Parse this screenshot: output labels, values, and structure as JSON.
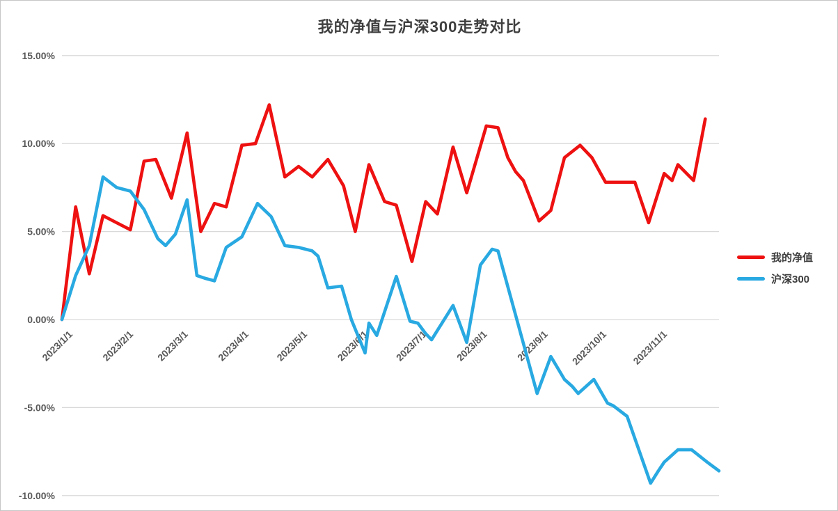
{
  "title": "我的净值与沪深300走势对比",
  "legend": {
    "position": "right",
    "items": [
      {
        "label": "我的净值",
        "color": "#ee1111"
      },
      {
        "label": "沪深300",
        "color": "#29a9e1"
      }
    ]
  },
  "colors": {
    "background": "#ffffff",
    "frame_border": "#c6c6c6",
    "gridline": "#d9d9d9",
    "axis_text": "#595959",
    "title_text": "#3f3f3f",
    "series_red": "#ee1111",
    "series_blue": "#29a9e1"
  },
  "chart_data": {
    "type": "line",
    "title": "我的净值与沪深300走势对比",
    "xlabel": "",
    "ylabel": "",
    "grid": "horizontal",
    "legend_position": "right",
    "x_unit": "days since 2023/1/1",
    "xlim": [
      0,
      336
    ],
    "ylim": [
      -10,
      15
    ],
    "y_ticks": [
      {
        "v": 15,
        "label": "15.00%"
      },
      {
        "v": 10,
        "label": "10.00%"
      },
      {
        "v": 5,
        "label": "5.00%"
      },
      {
        "v": 0,
        "label": "0.00%"
      },
      {
        "v": -5,
        "label": "-5.00%"
      },
      {
        "v": -10,
        "label": "-10.00%"
      }
    ],
    "x_ticks": [
      {
        "day": 0,
        "label": "2023/1/1"
      },
      {
        "day": 31,
        "label": "2023/2/1"
      },
      {
        "day": 59,
        "label": "2023/3/1"
      },
      {
        "day": 90,
        "label": "2023/4/1"
      },
      {
        "day": 120,
        "label": "2023/5/1"
      },
      {
        "day": 151,
        "label": "2023/6/1"
      },
      {
        "day": 181,
        "label": "2023/7/1"
      },
      {
        "day": 212,
        "label": "2023/8/1"
      },
      {
        "day": 243,
        "label": "2023/9/1"
      },
      {
        "day": 273,
        "label": "2023/10/1"
      },
      {
        "day": 304,
        "label": "2023/11/1"
      }
    ],
    "series": [
      {
        "name": "我的净值",
        "color": "#ee1111",
        "unit": "%",
        "points": [
          [
            0,
            0.0
          ],
          [
            7,
            6.4
          ],
          [
            14,
            2.6
          ],
          [
            21,
            5.9
          ],
          [
            28,
            5.5
          ],
          [
            35,
            5.1
          ],
          [
            42,
            9.0
          ],
          [
            48,
            9.1
          ],
          [
            56,
            6.9
          ],
          [
            64,
            10.6
          ],
          [
            71,
            5.0
          ],
          [
            78,
            6.6
          ],
          [
            84,
            6.4
          ],
          [
            92,
            9.9
          ],
          [
            99,
            10.0
          ],
          [
            106,
            12.2
          ],
          [
            114,
            8.1
          ],
          [
            121,
            8.7
          ],
          [
            128,
            8.1
          ],
          [
            136,
            9.1
          ],
          [
            144,
            7.6
          ],
          [
            150,
            5.0
          ],
          [
            157,
            8.8
          ],
          [
            165,
            6.7
          ],
          [
            171,
            6.5
          ],
          [
            179,
            3.3
          ],
          [
            186,
            6.7
          ],
          [
            192,
            6.0
          ],
          [
            200,
            9.8
          ],
          [
            207,
            7.2
          ],
          [
            217,
            11.0
          ],
          [
            223,
            10.9
          ],
          [
            228,
            9.2
          ],
          [
            232,
            8.4
          ],
          [
            236,
            7.9
          ],
          [
            244,
            5.6
          ],
          [
            250,
            6.2
          ],
          [
            257,
            9.2
          ],
          [
            265,
            9.9
          ],
          [
            271,
            9.2
          ],
          [
            278,
            7.8
          ],
          [
            285,
            7.8
          ],
          [
            293,
            7.8
          ],
          [
            300,
            5.5
          ],
          [
            308,
            8.3
          ],
          [
            312,
            7.9
          ],
          [
            315,
            8.8
          ],
          [
            323,
            7.9
          ],
          [
            329,
            11.4
          ]
        ]
      },
      {
        "name": "沪深300",
        "color": "#29a9e1",
        "unit": "%",
        "points": [
          [
            0,
            0.0
          ],
          [
            7,
            2.5
          ],
          [
            14,
            4.2
          ],
          [
            21,
            8.1
          ],
          [
            28,
            7.5
          ],
          [
            35,
            7.3
          ],
          [
            42,
            6.25
          ],
          [
            49,
            4.6
          ],
          [
            53,
            4.2
          ],
          [
            58,
            4.85
          ],
          [
            64,
            6.8
          ],
          [
            69,
            2.5
          ],
          [
            73,
            2.35
          ],
          [
            78,
            2.2
          ],
          [
            84,
            4.1
          ],
          [
            92,
            4.7
          ],
          [
            100,
            6.6
          ],
          [
            107,
            5.85
          ],
          [
            114,
            4.2
          ],
          [
            121,
            4.1
          ],
          [
            128,
            3.9
          ],
          [
            131,
            3.6
          ],
          [
            136,
            1.8
          ],
          [
            143,
            1.9
          ],
          [
            148,
            0.0
          ],
          [
            155,
            -1.9
          ],
          [
            157,
            -0.2
          ],
          [
            161,
            -0.9
          ],
          [
            171,
            2.45
          ],
          [
            178,
            -0.1
          ],
          [
            182,
            -0.2
          ],
          [
            186,
            -0.8
          ],
          [
            189,
            -1.15
          ],
          [
            200,
            0.8
          ],
          [
            207,
            -1.3
          ],
          [
            214,
            3.1
          ],
          [
            220,
            4.0
          ],
          [
            223,
            3.9
          ],
          [
            243,
            -4.2
          ],
          [
            250,
            -2.1
          ],
          [
            257,
            -3.4
          ],
          [
            261,
            -3.8
          ],
          [
            264,
            -4.2
          ],
          [
            272,
            -3.4
          ],
          [
            279,
            -4.75
          ],
          [
            282,
            -4.9
          ],
          [
            289,
            -5.5
          ],
          [
            301,
            -9.3
          ],
          [
            305,
            -8.6
          ],
          [
            308,
            -8.1
          ],
          [
            311,
            -7.8
          ],
          [
            315,
            -7.4
          ],
          [
            322,
            -7.4
          ],
          [
            330,
            -8.1
          ],
          [
            336,
            -8.6
          ]
        ]
      }
    ]
  }
}
